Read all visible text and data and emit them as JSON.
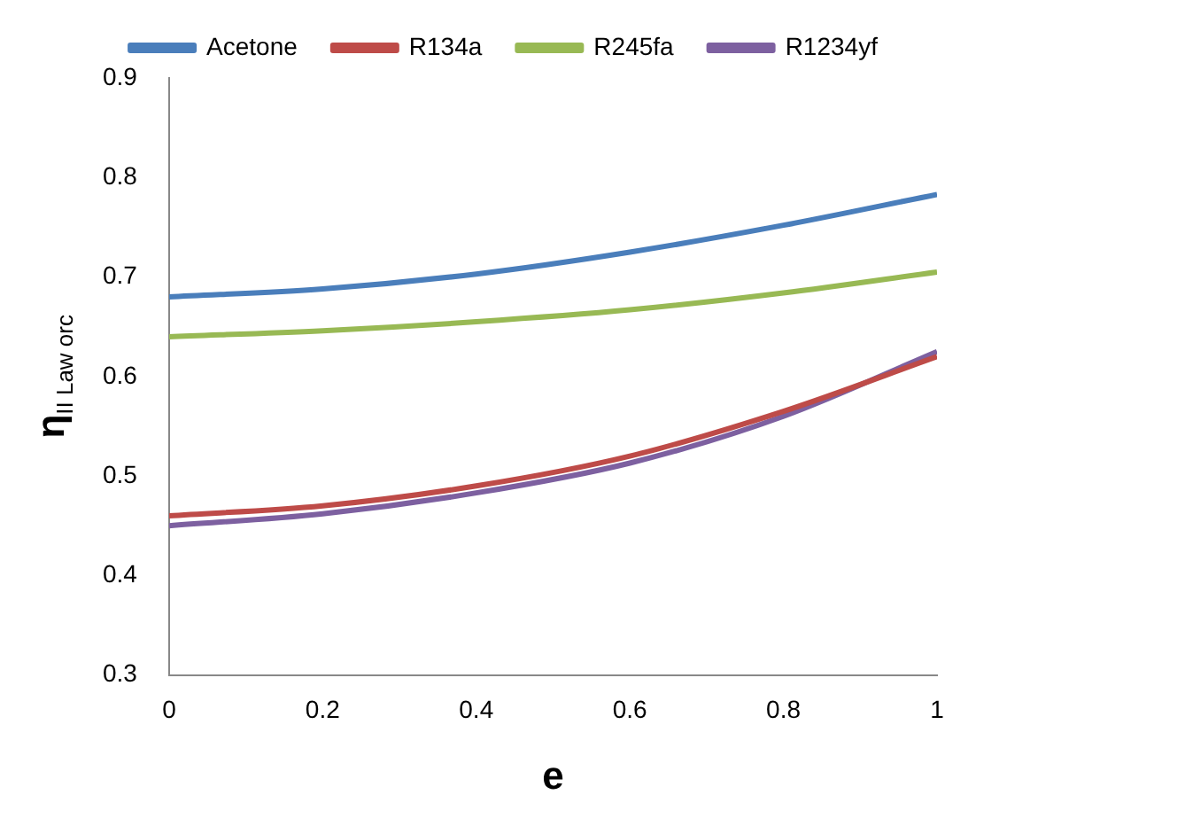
{
  "chart_data": {
    "type": "line",
    "xlabel": "e",
    "ylabel": "η$_{II Law orc}$",
    "x": [
      0,
      0.2,
      0.4,
      0.6,
      0.8,
      1
    ],
    "xlim": [
      0,
      1
    ],
    "xticks": [
      0,
      0.2,
      0.4,
      0.6,
      0.8,
      1
    ],
    "ylim": [
      0.3,
      0.9
    ],
    "yticks": [
      0.3,
      0.4,
      0.5,
      0.6,
      0.7,
      0.8,
      0.9
    ],
    "grid": false,
    "legend": "top",
    "marker": "none",
    "line_style": "solid",
    "series": [
      {
        "name": "Acetone",
        "color": "#4a7ebb",
        "values": [
          0.68,
          0.688,
          0.703,
          0.725,
          0.752,
          0.783
        ]
      },
      {
        "name": "R134a",
        "color": "#be4b48",
        "values": [
          0.46,
          0.47,
          0.49,
          0.52,
          0.565,
          0.62
        ]
      },
      {
        "name": "R245fa",
        "color": "#98b954",
        "values": [
          0.64,
          0.646,
          0.655,
          0.667,
          0.684,
          0.705
        ]
      },
      {
        "name": "R1234yf",
        "color": "#7d60a0",
        "values": [
          0.45,
          0.462,
          0.483,
          0.513,
          0.56,
          0.625
        ]
      }
    ]
  }
}
